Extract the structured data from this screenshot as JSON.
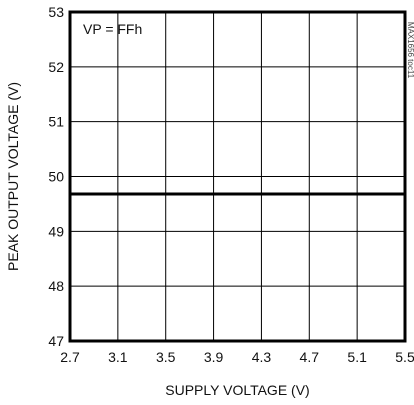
{
  "chart_data": {
    "type": "line",
    "title": "",
    "xlabel": "SUPPLY VOLTAGE (V)",
    "ylabel": "PEAK OUTPUT VOLTAGE (V)",
    "xlim": [
      2.7,
      5.5
    ],
    "ylim": [
      47,
      53
    ],
    "x_ticks": [
      "2.7",
      "3.1",
      "3.5",
      "3.9",
      "4.3",
      "4.7",
      "5.1",
      "5.5"
    ],
    "y_ticks": [
      "47",
      "48",
      "49",
      "50",
      "51",
      "52",
      "53"
    ],
    "grid": true,
    "annotation": "VP = FFh",
    "figure_code": "MAX1656 toc11",
    "series": [
      {
        "x": [
          2.7,
          5.5
        ],
        "y": [
          49.68,
          49.68
        ]
      }
    ]
  }
}
